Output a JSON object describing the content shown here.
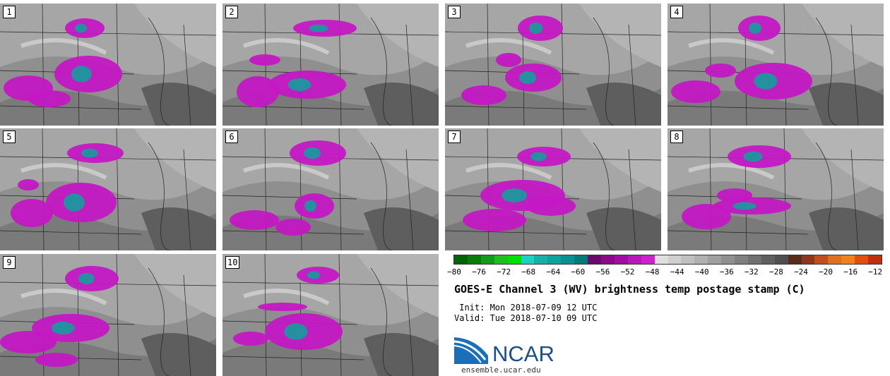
{
  "panels": [
    {
      "num": "1"
    },
    {
      "num": "2"
    },
    {
      "num": "3"
    },
    {
      "num": "4"
    },
    {
      "num": "5"
    },
    {
      "num": "6"
    },
    {
      "num": "7"
    },
    {
      "num": "8"
    },
    {
      "num": "9"
    },
    {
      "num": "10"
    }
  ],
  "colorbar": {
    "colors": [
      "#006400",
      "#0a7a0a",
      "#14991e",
      "#1fbf1f",
      "#00e000",
      "#1fd0c0",
      "#14b0b0",
      "#0fa0a0",
      "#0a9090",
      "#087878",
      "#6a0a6a",
      "#8a0a8a",
      "#a010a0",
      "#b818b8",
      "#cc22cc",
      "#e0e0e0",
      "#d0d0d0",
      "#c0c0c0",
      "#b0b0b0",
      "#a0a0a0",
      "#909090",
      "#808080",
      "#707070",
      "#606060",
      "#505050",
      "#5a2a1a",
      "#8a3a1a",
      "#c05020",
      "#e07020",
      "#f08020",
      "#e05010",
      "#c03010"
    ],
    "tick_labels": [
      "−80",
      "−76",
      "−72",
      "−68",
      "−64",
      "−60",
      "−56",
      "−52",
      "−48",
      "−44",
      "−40",
      "−36",
      "−32",
      "−28",
      "−24",
      "−20",
      "−16",
      "−12"
    ]
  },
  "title": "GOES-E Channel 3 (WV) brightness temp postage stamp (C)",
  "init": " Init: Mon 2018-07-09 12 UTC",
  "valid": "Valid: Tue 2018-07-10 09 UTC",
  "logo_text": "NCAR",
  "url": "ensemble.ucar.edu"
}
